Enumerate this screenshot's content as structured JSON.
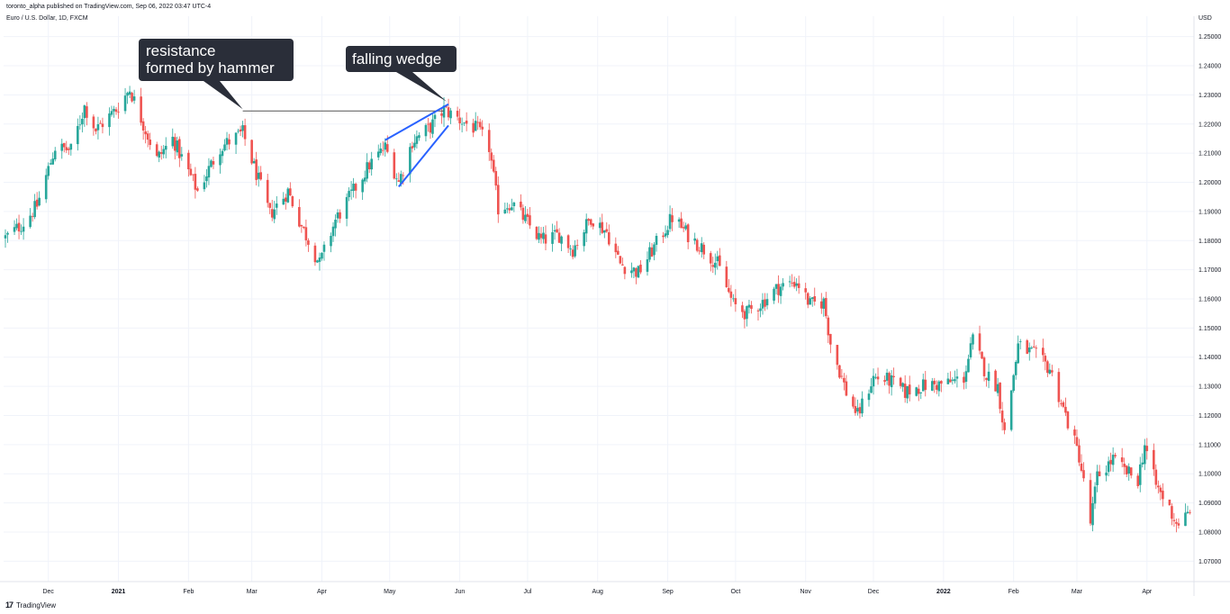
{
  "header": {
    "published": "toronto_alpha published on TradingView.com, Sep 06, 2022 03:47 UTC-4",
    "symbol": "Euro / U.S. Dollar, 1D, FXCM",
    "currency": "USD"
  },
  "brand": {
    "logo": "17",
    "name": "TradingView"
  },
  "colors": {
    "up": "#26a69a",
    "down": "#ef5350",
    "wedge": "#2962ff",
    "resistance": "#555555",
    "callout": "#2a2e39"
  },
  "annotations": {
    "resistance": [
      "resistance",
      "formed by hammer"
    ],
    "wedge": "falling wedge"
  },
  "chart_data": {
    "type": "candlestick",
    "title": "Euro / U.S. Dollar, 1D, FXCM",
    "ylabel": "USD",
    "ylim": [
      1.063,
      1.257
    ],
    "xlim": [
      "2020-11-12",
      "2022-04-21"
    ],
    "y_ticks": [
      "1.07000",
      "1.08000",
      "1.09000",
      "1.10000",
      "1.11000",
      "1.12000",
      "1.13000",
      "1.14000",
      "1.15000",
      "1.16000",
      "1.17000",
      "1.18000",
      "1.19000",
      "1.20000",
      "1.21000",
      "1.22000",
      "1.23000",
      "1.24000",
      "1.25000"
    ],
    "x_ticks": [
      {
        "label": "Dec",
        "date": "2020-12-01",
        "bold": false
      },
      {
        "label": "2021",
        "date": "2021-01-01",
        "bold": true
      },
      {
        "label": "Feb",
        "date": "2021-02-01",
        "bold": false
      },
      {
        "label": "Mar",
        "date": "2021-03-01",
        "bold": false
      },
      {
        "label": "Apr",
        "date": "2021-04-01",
        "bold": false
      },
      {
        "label": "May",
        "date": "2021-05-01",
        "bold": false
      },
      {
        "label": "Jun",
        "date": "2021-06-01",
        "bold": false
      },
      {
        "label": "Jul",
        "date": "2021-07-01",
        "bold": false
      },
      {
        "label": "Aug",
        "date": "2021-08-01",
        "bold": false
      },
      {
        "label": "Sep",
        "date": "2021-09-01",
        "bold": false
      },
      {
        "label": "Oct",
        "date": "2021-10-01",
        "bold": false
      },
      {
        "label": "Nov",
        "date": "2021-11-01",
        "bold": false
      },
      {
        "label": "Dec",
        "date": "2021-12-01",
        "bold": false
      },
      {
        "label": "2022",
        "date": "2022-01-01",
        "bold": true
      },
      {
        "label": "Feb",
        "date": "2022-02-01",
        "bold": false
      },
      {
        "label": "Mar",
        "date": "2022-03-01",
        "bold": false
      },
      {
        "label": "Apr",
        "date": "2022-04-01",
        "bold": false
      }
    ],
    "close_path": [
      {
        "date": "2020-11-12",
        "close": 1.181
      },
      {
        "date": "2020-11-20",
        "close": 1.186
      },
      {
        "date": "2020-11-26",
        "close": 1.192
      },
      {
        "date": "2020-12-04",
        "close": 1.212
      },
      {
        "date": "2020-12-11",
        "close": 1.211
      },
      {
        "date": "2020-12-17",
        "close": 1.226
      },
      {
        "date": "2020-12-22",
        "close": 1.218
      },
      {
        "date": "2020-12-31",
        "close": 1.225
      },
      {
        "date": "2021-01-06",
        "close": 1.232
      },
      {
        "date": "2021-01-12",
        "close": 1.22
      },
      {
        "date": "2021-01-18",
        "close": 1.208
      },
      {
        "date": "2021-01-25",
        "close": 1.215
      },
      {
        "date": "2021-02-05",
        "close": 1.197
      },
      {
        "date": "2021-02-15",
        "close": 1.212
      },
      {
        "date": "2021-02-25",
        "close": 1.217
      },
      {
        "date": "2021-03-09",
        "close": 1.189
      },
      {
        "date": "2021-03-17",
        "close": 1.197
      },
      {
        "date": "2021-03-23",
        "close": 1.185
      },
      {
        "date": "2021-03-31",
        "close": 1.172
      },
      {
        "date": "2021-04-07",
        "close": 1.187
      },
      {
        "date": "2021-04-15",
        "close": 1.197
      },
      {
        "date": "2021-04-22",
        "close": 1.206
      },
      {
        "date": "2021-04-29",
        "close": 1.212
      },
      {
        "date": "2021-05-05",
        "close": 1.2
      },
      {
        "date": "2021-05-11",
        "close": 1.214
      },
      {
        "date": "2021-05-19",
        "close": 1.219
      },
      {
        "date": "2021-05-25",
        "close": 1.225
      },
      {
        "date": "2021-06-02",
        "close": 1.221
      },
      {
        "date": "2021-06-09",
        "close": 1.218
      },
      {
        "date": "2021-06-14",
        "close": 1.212
      },
      {
        "date": "2021-06-18",
        "close": 1.191
      },
      {
        "date": "2021-06-24",
        "close": 1.193
      },
      {
        "date": "2021-07-01",
        "close": 1.186
      },
      {
        "date": "2021-07-07",
        "close": 1.18
      },
      {
        "date": "2021-07-15",
        "close": 1.182
      },
      {
        "date": "2021-07-21",
        "close": 1.177
      },
      {
        "date": "2021-07-29",
        "close": 1.188
      },
      {
        "date": "2021-08-05",
        "close": 1.183
      },
      {
        "date": "2021-08-11",
        "close": 1.172
      },
      {
        "date": "2021-08-19",
        "close": 1.169
      },
      {
        "date": "2021-08-27",
        "close": 1.179
      },
      {
        "date": "2021-09-03",
        "close": 1.188
      },
      {
        "date": "2021-09-10",
        "close": 1.182
      },
      {
        "date": "2021-09-17",
        "close": 1.177
      },
      {
        "date": "2021-09-23",
        "close": 1.172
      },
      {
        "date": "2021-09-30",
        "close": 1.158
      },
      {
        "date": "2021-10-06",
        "close": 1.155
      },
      {
        "date": "2021-10-13",
        "close": 1.159
      },
      {
        "date": "2021-10-20",
        "close": 1.164
      },
      {
        "date": "2021-10-28",
        "close": 1.166
      },
      {
        "date": "2021-11-03",
        "close": 1.158
      },
      {
        "date": "2021-11-09",
        "close": 1.159
      },
      {
        "date": "2021-11-12",
        "close": 1.145
      },
      {
        "date": "2021-11-19",
        "close": 1.128
      },
      {
        "date": "2021-11-24",
        "close": 1.12
      },
      {
        "date": "2021-12-01",
        "close": 1.133
      },
      {
        "date": "2021-12-08",
        "close": 1.132
      },
      {
        "date": "2021-12-15",
        "close": 1.128
      },
      {
        "date": "2021-12-22",
        "close": 1.13
      },
      {
        "date": "2022-01-03",
        "close": 1.131
      },
      {
        "date": "2022-01-10",
        "close": 1.133
      },
      {
        "date": "2022-01-14",
        "close": 1.146
      },
      {
        "date": "2022-01-20",
        "close": 1.134
      },
      {
        "date": "2022-01-25",
        "close": 1.13
      },
      {
        "date": "2022-01-28",
        "close": 1.114
      },
      {
        "date": "2022-02-03",
        "close": 1.144
      },
      {
        "date": "2022-02-10",
        "close": 1.141
      },
      {
        "date": "2022-02-17",
        "close": 1.136
      },
      {
        "date": "2022-02-24",
        "close": 1.12
      },
      {
        "date": "2022-03-02",
        "close": 1.106
      },
      {
        "date": "2022-03-07",
        "close": 1.083
      },
      {
        "date": "2022-03-10",
        "close": 1.099
      },
      {
        "date": "2022-03-17",
        "close": 1.105
      },
      {
        "date": "2022-03-22",
        "close": 1.101
      },
      {
        "date": "2022-03-28",
        "close": 1.098
      },
      {
        "date": "2022-03-31",
        "close": 1.11
      },
      {
        "date": "2022-04-05",
        "close": 1.096
      },
      {
        "date": "2022-04-11",
        "close": 1.088
      },
      {
        "date": "2022-04-14",
        "close": 1.083
      },
      {
        "date": "2022-04-20",
        "close": 1.086
      }
    ],
    "resistance_line": {
      "from": "2021-02-25",
      "to": "2021-05-25",
      "price": 1.2245
    },
    "wedge_upper": [
      {
        "date": "2021-04-29",
        "price": 1.2145
      },
      {
        "date": "2021-05-27",
        "price": 1.2268
      }
    ],
    "wedge_lower": [
      {
        "date": "2021-05-05",
        "price": 1.1985
      },
      {
        "date": "2021-05-27",
        "price": 1.2195
      }
    ],
    "grid": true
  }
}
